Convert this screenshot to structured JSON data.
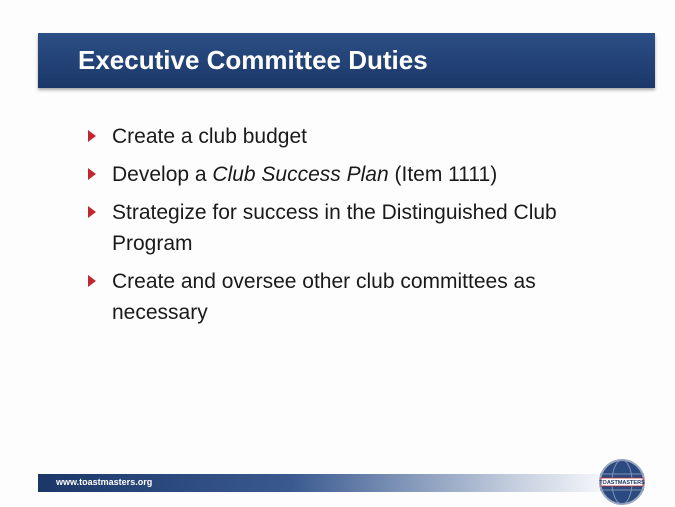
{
  "title": "Executive Committee Duties",
  "bullets": [
    [
      {
        "text": "Create a club budget"
      }
    ],
    [
      {
        "text": "Develop a "
      },
      {
        "text": "Club Success Plan",
        "italic": true
      },
      {
        "text": " (Item 1111)"
      }
    ],
    [
      {
        "text": "Strategize for success in the Distinguished Club Program"
      }
    ],
    [
      {
        "text": "Create and oversee other club committees as necessary"
      }
    ]
  ],
  "footer": "www.toastmasters.org",
  "logo": "TOASTMASTERS"
}
